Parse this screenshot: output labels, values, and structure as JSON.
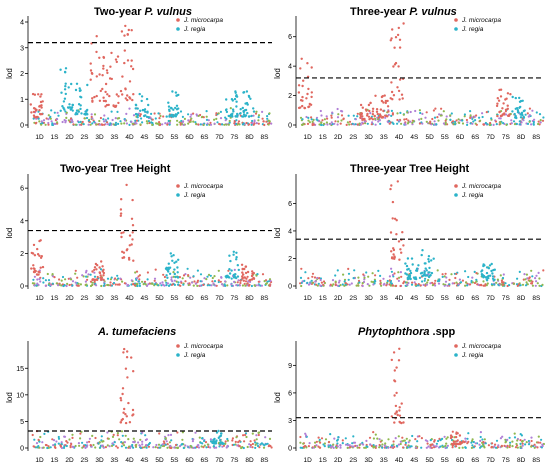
{
  "chart_data": [
    {
      "type": "scatter",
      "title_prefix": "Two-year ",
      "title_italic": "P. vulnus",
      "title_suffix": "",
      "ylabel": "lod",
      "ylim": [
        0,
        4
      ],
      "yticks": [
        0,
        1,
        2,
        3,
        4
      ],
      "threshold": 3.2,
      "peaks": [
        {
          "chrom": "1D",
          "value": 1.2,
          "series": 0
        },
        {
          "chrom": "2D",
          "value": 2.2,
          "series": 1
        },
        {
          "chrom": "2S",
          "value": 1.6,
          "series": 1
        },
        {
          "chrom": "3D",
          "value": 3.45,
          "series": 0
        },
        {
          "chrom": "3S",
          "value": 2.8,
          "series": 0
        },
        {
          "chrom": "4D",
          "value": 3.85,
          "series": 0
        },
        {
          "chrom": "4S",
          "value": 1.2,
          "series": 1
        },
        {
          "chrom": "5S",
          "value": 1.3,
          "series": 1
        },
        {
          "chrom": "7S",
          "value": 1.3,
          "series": 1
        },
        {
          "chrom": "8D",
          "value": 1.3,
          "series": 1
        }
      ]
    },
    {
      "type": "scatter",
      "title_prefix": "Three-year ",
      "title_italic": "P. vulnus",
      "title_suffix": "",
      "ylabel": "lod",
      "ylim": [
        0,
        7
      ],
      "yticks": [
        0,
        2,
        4,
        6
      ],
      "threshold": 3.2,
      "peaks": [
        {
          "chrom": "1D",
          "value": 4.5,
          "series": 0
        },
        {
          "chrom": "3D",
          "value": 1.5,
          "series": 0
        },
        {
          "chrom": "3S",
          "value": 2.0,
          "series": 0
        },
        {
          "chrom": "4D",
          "value": 6.9,
          "series": 0
        },
        {
          "chrom": "7S",
          "value": 2.4,
          "series": 0
        },
        {
          "chrom": "8D",
          "value": 1.9,
          "series": 1
        }
      ]
    },
    {
      "type": "scatter",
      "title_prefix": "Two-year Tree Height",
      "title_italic": "",
      "title_suffix": "",
      "ylabel": "lod",
      "ylim": [
        0,
        6.5
      ],
      "yticks": [
        0,
        2,
        4,
        6
      ],
      "threshold": 3.4,
      "peaks": [
        {
          "chrom": "1D",
          "value": 2.8,
          "series": 0
        },
        {
          "chrom": "3D",
          "value": 1.5,
          "series": 0
        },
        {
          "chrom": "4D",
          "value": 6.2,
          "series": 0
        },
        {
          "chrom": "5S",
          "value": 2.0,
          "series": 1
        },
        {
          "chrom": "7S",
          "value": 2.1,
          "series": 1
        },
        {
          "chrom": "8D",
          "value": 1.3,
          "series": 0
        }
      ]
    },
    {
      "type": "scatter",
      "title_prefix": "Three-year Tree Height",
      "title_italic": "",
      "title_suffix": "",
      "ylabel": "lod",
      "ylim": [
        0,
        7.7
      ],
      "yticks": [
        0,
        2,
        4,
        6
      ],
      "threshold": 3.4,
      "peaks": [
        {
          "chrom": "4D",
          "value": 7.6,
          "series": 0
        },
        {
          "chrom": "4S",
          "value": 2.0,
          "series": 1
        },
        {
          "chrom": "5D",
          "value": 2.6,
          "series": 1
        },
        {
          "chrom": "7D",
          "value": 1.6,
          "series": 1
        }
      ]
    },
    {
      "type": "scatter",
      "title_prefix": "",
      "title_italic": "A. tumefaciens",
      "title_suffix": "",
      "ylabel": "lod",
      "ylim": [
        0,
        19
      ],
      "yticks": [
        0,
        5,
        10,
        15
      ],
      "threshold": 3.2,
      "peaks": [
        {
          "chrom": "4D",
          "value": 18.6,
          "series": 0
        },
        {
          "chrom": "7D",
          "value": 3.2,
          "series": 1
        }
      ]
    },
    {
      "type": "scatter",
      "title_prefix": "",
      "title_italic": "Phytophthora",
      "title_suffix": " .spp",
      "ylabel": "lod",
      "ylim": [
        0,
        11
      ],
      "yticks": [
        0,
        3,
        6,
        9
      ],
      "threshold": 3.3,
      "peaks": [
        {
          "chrom": "4D",
          "value": 10.8,
          "series": 0
        },
        {
          "chrom": "6D",
          "value": 1.6,
          "series": 0
        }
      ]
    }
  ],
  "chromosomes": [
    "1D",
    "1S",
    "2D",
    "2S",
    "3D",
    "3S",
    "4D",
    "4S",
    "5D",
    "5S",
    "6D",
    "6S",
    "7D",
    "7S",
    "8D",
    "8S"
  ],
  "legend": [
    {
      "name": "J. microcarpa",
      "color": "#e0675f"
    },
    {
      "name": "J. regia",
      "color": "#2bb3c9"
    }
  ],
  "bg_colors": [
    "#e0675f",
    "#2bb3c9",
    "#8fb84e",
    "#b07fd6"
  ]
}
